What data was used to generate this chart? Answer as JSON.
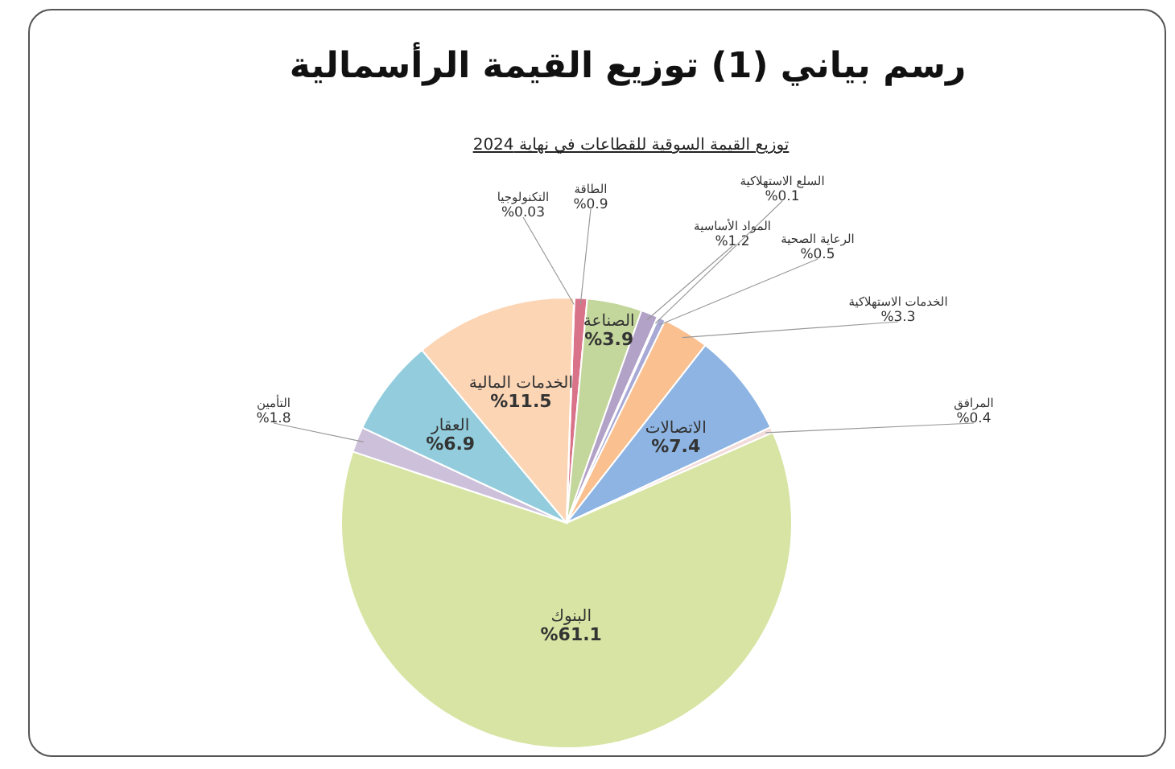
{
  "chart_data": {
    "type": "pie",
    "title": "رسم بياني (1) توزيع القيمة الرأسمالية",
    "subtitle": "توزيع القيمة السوقية للقطاعات في نهاية 2024",
    "categories": [
      "الطاقة",
      "الصناعة",
      "المواد الأساسية",
      "السلع الاستهلاكية",
      "الرعاية الصحية",
      "الخدمات الاستهلاكية",
      "الاتصالات",
      "المرافق",
      "البنوك",
      "التأمين",
      "العقار",
      "الخدمات المالية",
      "التكنولوجيا"
    ],
    "values": [
      0.9,
      3.9,
      1.2,
      0.1,
      0.5,
      3.3,
      7.4,
      0.4,
      61.1,
      1.8,
      6.9,
      11.5,
      0.03
    ],
    "value_labels": [
      "%0.9",
      "%3.9",
      "%1.2",
      "%0.1",
      "%0.5",
      "%3.3",
      "%7.4",
      "%0.4",
      "%61.1",
      "%1.8",
      "%6.9",
      "%11.5",
      "%0.03"
    ],
    "colors": [
      "#d9738a",
      "#c3d69b",
      "#b3a2c7",
      "#8e7cc3",
      "#a9a9d6",
      "#fac090",
      "#8db4e2",
      "#f2dcdb",
      "#d7e4a3",
      "#ccc0da",
      "#93cddd",
      "#fcd5b5",
      "#e6b9b8"
    ]
  }
}
